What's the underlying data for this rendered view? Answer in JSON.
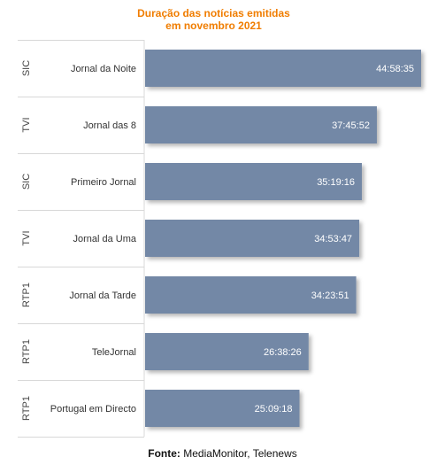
{
  "chart_data": {
    "type": "bar",
    "orientation": "horizontal",
    "title_lines": [
      "Duração das notícias emitidas",
      "em novembro 2021"
    ],
    "channels": [
      "SIC",
      "TVI",
      "SIC",
      "TVI",
      "RTP1",
      "RTP1",
      "RTP1"
    ],
    "categories": [
      "Jornal da Noite",
      "Jornal das 8",
      "Primeiro Jornal",
      "Jornal da Uma",
      "Jornal da Tarde",
      "TeleJornal",
      "Portugal em Directo"
    ],
    "values": [
      "44:58:35",
      "37:45:52",
      "35:19:16",
      "34:53:47",
      "34:23:51",
      "26:38:26",
      "25:09:18"
    ],
    "x_unit": "hh:mm:ss",
    "xlim": [
      "00:00:00",
      "44:58:35"
    ],
    "bar_color": "#7388a6",
    "label_color": "#ffffff",
    "grid": false,
    "legend": "none"
  },
  "source": {
    "label": "Fonte:",
    "text": "MediaMonitor, Telenews"
  },
  "colors": {
    "title": "#f07d00",
    "divider": "#d8d8d8"
  }
}
